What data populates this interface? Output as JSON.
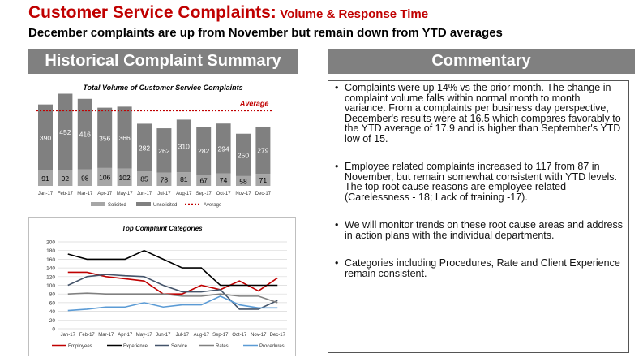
{
  "header": {
    "title": "Customer Service Complaints:",
    "title_suffix": "Volume & Response Time",
    "subtitle": "December complaints are up from November but remain down from YTD averages"
  },
  "left_banner": "Historical Complaint Summary",
  "right_banner": "Commentary",
  "colors": {
    "brand_red": "#c00000",
    "banner_gray": "#808080",
    "solicited": "#a6a6a6",
    "unsolicited": "#808080"
  },
  "chart_data": [
    {
      "type": "bar",
      "stacked": true,
      "title": "Total Volume of Customer Service Complaints",
      "categories": [
        "Jan-17",
        "Feb-17",
        "Mar-17",
        "Apr-17",
        "May-17",
        "Jun-17",
        "Jul-17",
        "Aug-17",
        "Sep-17",
        "Oct-17",
        "Nov-17",
        "Dec-17"
      ],
      "series": [
        {
          "name": "Solicited",
          "values": [
            91,
            92,
            98,
            106,
            102,
            85,
            78,
            81,
            67,
            74,
            58,
            71
          ]
        },
        {
          "name": "Unsolicited",
          "values": [
            390,
            452,
            416,
            356,
            366,
            282,
            262,
            310,
            282,
            294,
            250,
            279
          ]
        }
      ],
      "reference_line": {
        "name": "Average",
        "label": "Average",
        "value": 444
      },
      "legend": [
        "Solicited",
        "Unsolicited",
        "Average"
      ],
      "legend_position": "bottom",
      "ylim": [
        0,
        580
      ]
    },
    {
      "type": "line",
      "title": "Top Complaint Categories",
      "categories": [
        "Jan-17",
        "Feb-17",
        "Mar-17",
        "Apr-17",
        "May-17",
        "Jun-17",
        "Jul-17",
        "Aug-17",
        "Sep-17",
        "Oct-17",
        "Nov-17",
        "Dec-17"
      ],
      "y_ticks": [
        "0",
        "20",
        "40",
        "60",
        "80",
        "100",
        "120",
        "140",
        "160",
        "180",
        "200"
      ],
      "ylim": [
        0,
        200
      ],
      "series": [
        {
          "name": "Employees",
          "color": "#c00000",
          "values": [
            130,
            130,
            120,
            115,
            110,
            80,
            80,
            100,
            90,
            110,
            87,
            117
          ]
        },
        {
          "name": "Experience",
          "color": "#000000",
          "values": [
            172,
            160,
            160,
            160,
            180,
            160,
            140,
            140,
            100,
            100,
            100,
            100
          ]
        },
        {
          "name": "Service",
          "color": "#44546a",
          "values": [
            100,
            120,
            125,
            122,
            120,
            100,
            85,
            85,
            90,
            45,
            45,
            65
          ]
        },
        {
          "name": "Rates",
          "color": "#808080",
          "values": [
            80,
            82,
            80,
            80,
            80,
            80,
            75,
            75,
            80,
            75,
            75,
            60
          ]
        },
        {
          "name": "Procedures",
          "color": "#5b9bd5",
          "values": [
            42,
            45,
            50,
            50,
            60,
            50,
            55,
            55,
            75,
            55,
            48,
            48
          ]
        }
      ],
      "legend_position": "bottom"
    }
  ],
  "commentary": [
    "Complaints were up 14% vs the prior month.  The change in complaint volume falls within normal month to month variance. From a complaints per business day perspective, December's results were at 16.5 which compares favorably to the YTD average of 17.9 and is higher than September's YTD low of 15.",
    "Employee related complaints increased to 117 from 87 in November, but remain somewhat consistent with YTD levels.  The top root cause reasons are employee related (Carelessness - 18; Lack of training -17).",
    "We will monitor trends on these root cause areas and address in action plans with the individual departments.",
    "Categories including Procedures, Rate and Client Experience remain consistent."
  ]
}
